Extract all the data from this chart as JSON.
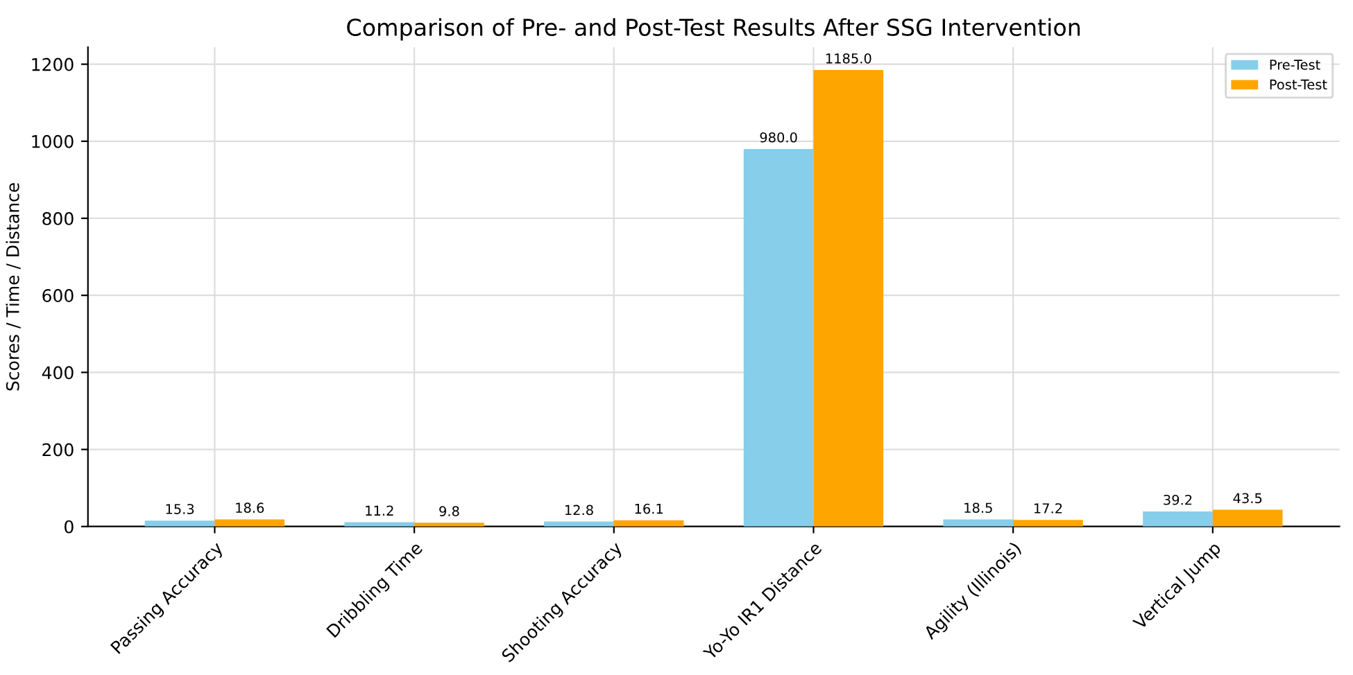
{
  "chart_data": {
    "type": "bar",
    "title": "Comparison of Pre- and Post-Test Results After SSG Intervention",
    "ylabel": "Scores / Time / Distance",
    "categories": [
      "Passing Accuracy",
      "Dribbling Time",
      "Shooting Accuracy",
      "Yo-Yo IR1 Distance",
      "Agility (Illinois)",
      "Vertical Jump"
    ],
    "series": [
      {
        "name": "Pre-Test",
        "color": "#87ceeb",
        "values": [
          15.3,
          11.2,
          12.8,
          980.0,
          18.5,
          39.2
        ],
        "value_labels": [
          "15.3",
          "11.2",
          "12.8",
          "980.0",
          "18.5",
          "39.2"
        ]
      },
      {
        "name": "Post-Test",
        "color": "#ffa500",
        "values": [
          18.6,
          9.8,
          16.1,
          1185.0,
          17.2,
          43.5
        ],
        "value_labels": [
          "18.6",
          "9.8",
          "16.1",
          "1185.0",
          "17.2",
          "43.5"
        ]
      }
    ],
    "ylim": [
      0,
      1244
    ],
    "yticks": [
      0,
      200,
      400,
      600,
      800,
      1000,
      1200
    ],
    "grid": true,
    "legend": "top right"
  }
}
